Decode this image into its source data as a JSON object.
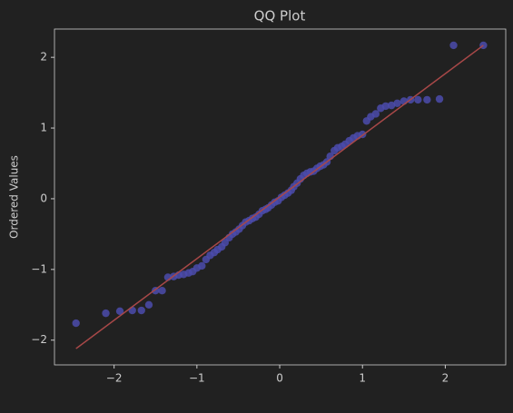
{
  "chart_data": {
    "type": "scatter",
    "title": "QQ Plot",
    "y_label": "Ordered Values",
    "xlim": [
      -2.72,
      2.73
    ],
    "ylim": [
      -2.35,
      2.4
    ],
    "xticks": [
      {
        "value": -2,
        "label": "−2"
      },
      {
        "value": -1,
        "label": "−1"
      },
      0,
      1,
      2
    ],
    "yticks": [
      {
        "value": -2,
        "label": "−2"
      },
      {
        "value": -1,
        "label": "−1"
      },
      0,
      1,
      2
    ],
    "points": {
      "color": "#4b4bab",
      "x": [
        -2.46,
        -2.1,
        -1.93,
        -1.78,
        -1.67,
        -1.58,
        -1.5,
        -1.42,
        -1.35,
        -1.28,
        -1.22,
        -1.16,
        -1.1,
        -1.05,
        -1.0,
        -0.94,
        -0.89,
        -0.84,
        -0.79,
        -0.75,
        -0.7,
        -0.66,
        -0.61,
        -0.57,
        -0.53,
        -0.49,
        -0.45,
        -0.41,
        -0.37,
        -0.33,
        -0.29,
        -0.25,
        -0.21,
        -0.17,
        -0.14,
        -0.1,
        -0.06,
        -0.02,
        0.02,
        0.06,
        0.1,
        0.14,
        0.17,
        0.21,
        0.25,
        0.29,
        0.33,
        0.37,
        0.41,
        0.45,
        0.49,
        0.53,
        0.57,
        0.61,
        0.66,
        0.7,
        0.75,
        0.79,
        0.84,
        0.89,
        0.94,
        1.0,
        1.05,
        1.1,
        1.16,
        1.22,
        1.28,
        1.35,
        1.42,
        1.5,
        1.58,
        1.67,
        1.78,
        1.93,
        2.1,
        2.46
      ],
      "values": [
        -1.76,
        -1.62,
        -1.59,
        -1.58,
        -1.58,
        -1.5,
        -1.3,
        -1.3,
        -1.11,
        -1.1,
        -1.08,
        -1.07,
        -1.05,
        -1.03,
        -0.98,
        -0.95,
        -0.86,
        -0.8,
        -0.76,
        -0.72,
        -0.68,
        -0.62,
        -0.55,
        -0.5,
        -0.47,
        -0.43,
        -0.38,
        -0.33,
        -0.31,
        -0.28,
        -0.26,
        -0.22,
        -0.17,
        -0.15,
        -0.13,
        -0.09,
        -0.05,
        -0.03,
        0.02,
        0.05,
        0.08,
        0.12,
        0.17,
        0.22,
        0.28,
        0.33,
        0.36,
        0.38,
        0.39,
        0.43,
        0.46,
        0.48,
        0.52,
        0.6,
        0.68,
        0.72,
        0.74,
        0.77,
        0.82,
        0.86,
        0.89,
        0.91,
        1.1,
        1.16,
        1.2,
        1.28,
        1.31,
        1.32,
        1.35,
        1.38,
        1.4,
        1.4,
        1.4,
        1.41,
        2.17,
        2.17
      ]
    },
    "fit_line": {
      "color": "#a84848",
      "x": [
        -2.46,
        2.46
      ],
      "values": [
        -2.12,
        2.17
      ]
    }
  }
}
